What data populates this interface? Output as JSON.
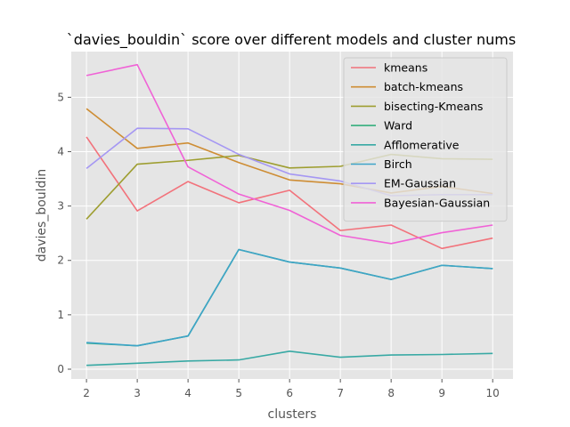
{
  "chart_data": {
    "type": "line",
    "title": "`davies_bouldin` score over different models and cluster nums",
    "xlabel": "clusters",
    "ylabel": "davies_bouldin",
    "x": [
      2,
      3,
      4,
      5,
      6,
      7,
      8,
      9,
      10
    ],
    "xlim": [
      1.7,
      10.4
    ],
    "ylim": [
      -0.18,
      5.84
    ],
    "xticks": [
      "2",
      "3",
      "4",
      "5",
      "6",
      "7",
      "8",
      "9",
      "10"
    ],
    "yticks": [
      "0",
      "1",
      "2",
      "3",
      "4",
      "5"
    ],
    "grid": true,
    "legend_position": "upper right",
    "series": [
      {
        "name": "kmeans",
        "color": "#f2727b",
        "values": [
          4.27,
          2.91,
          3.45,
          3.06,
          3.29,
          2.55,
          2.65,
          2.22,
          2.41
        ]
      },
      {
        "name": "batch-kmeans",
        "color": "#ce8d34",
        "values": [
          4.79,
          4.06,
          4.16,
          3.8,
          3.48,
          3.41,
          3.24,
          3.36,
          3.23
        ]
      },
      {
        "name": "bisecting-Kmeans",
        "color": "#9e9e30",
        "values": [
          2.76,
          3.77,
          3.84,
          3.93,
          3.7,
          3.73,
          3.95,
          3.87,
          3.86
        ]
      },
      {
        "name": "Ward",
        "color": "#34ae7c",
        "values": [
          0.48,
          0.43,
          0.61,
          2.2,
          1.97,
          1.86,
          1.65,
          1.91,
          1.85
        ]
      },
      {
        "name": "Afflomerative",
        "color": "#38a9a4",
        "values": [
          0.07,
          0.11,
          0.15,
          0.17,
          0.33,
          0.22,
          0.26,
          0.27,
          0.29
        ]
      },
      {
        "name": "Birch",
        "color": "#3ea4c8",
        "values": [
          0.49,
          0.43,
          0.61,
          2.2,
          1.97,
          1.86,
          1.65,
          1.91,
          1.85
        ]
      },
      {
        "name": "EM-Gaussian",
        "color": "#a597f3",
        "values": [
          3.69,
          4.43,
          4.42,
          3.95,
          3.59,
          3.46,
          3.19,
          3.21,
          3.21
        ]
      },
      {
        "name": "Bayesian-Gaussian",
        "color": "#f062d6",
        "values": [
          5.4,
          5.6,
          3.72,
          3.22,
          2.92,
          2.46,
          2.31,
          2.51,
          2.65
        ]
      }
    ]
  }
}
